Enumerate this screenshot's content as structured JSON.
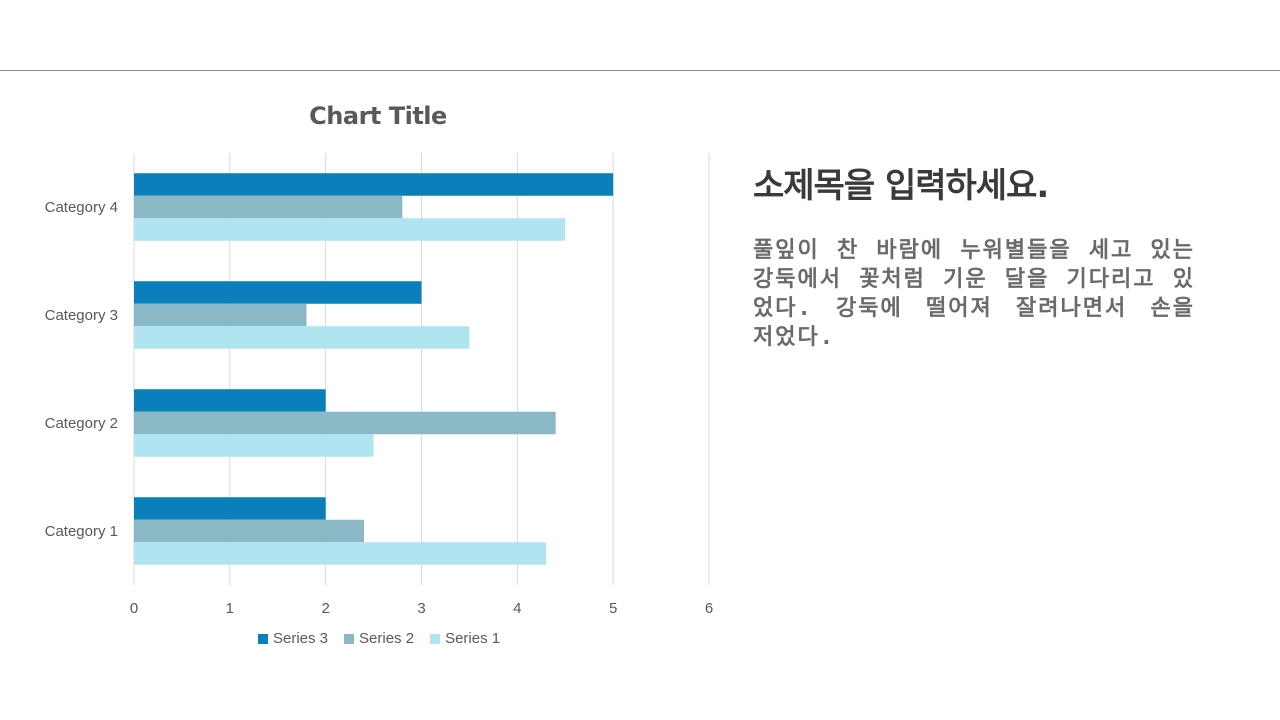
{
  "slide": {
    "heading": "소제목을 입력하세요.",
    "body": "풀잎이 찬 바람에 누워별들을 세고 있는 강둑에서 꽃처럼 기운 달을 기다리고 있었다. 강둑에 떨어져 잘려나면서 손을 저었다."
  },
  "colors": {
    "series3": "#0a7fba",
    "series2": "#8ab8c5",
    "series1": "#b0e4f1",
    "gridline": "#d9d9d9",
    "axis_text": "#595959",
    "rule": "#8f8f77"
  },
  "chart_data": {
    "type": "bar",
    "orientation": "horizontal",
    "title": "Chart Title",
    "categories": [
      "Category 1",
      "Category 2",
      "Category 3",
      "Category 4"
    ],
    "series": [
      {
        "name": "Series 3",
        "values": [
          2,
          2,
          3,
          5
        ]
      },
      {
        "name": "Series 2",
        "values": [
          2.4,
          4.4,
          1.8,
          2.8
        ]
      },
      {
        "name": "Series 1",
        "values": [
          4.3,
          2.5,
          3.5,
          4.5
        ]
      }
    ],
    "xlim": [
      0,
      6
    ],
    "xticks": [
      "0",
      "1",
      "2",
      "3",
      "4",
      "5",
      "6"
    ],
    "grid": true,
    "legend": "bottom"
  }
}
